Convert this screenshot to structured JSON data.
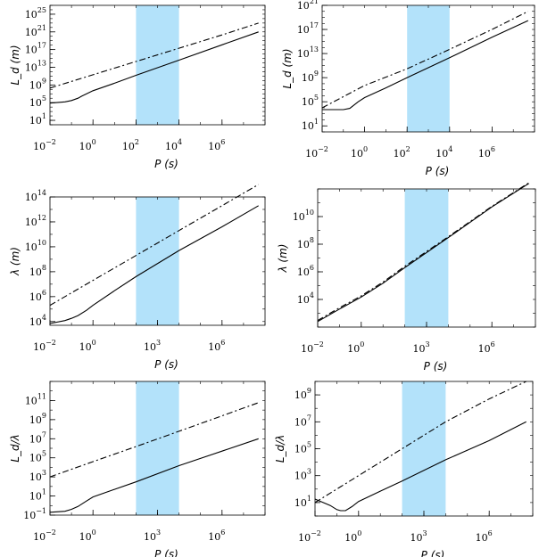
{
  "chart_data": [
    {
      "type": "line",
      "xscale": "log",
      "yscale": "log",
      "xlabel": "P (s)",
      "ylabel": "L_d (m)",
      "xlim": [
        0.01,
        100000000
      ],
      "ylim": [
        1,
        1e+27
      ],
      "xticks": [
        {
          "base": "10",
          "exp": "−2"
        },
        {
          "base": "10",
          "exp": "0"
        },
        {
          "base": "10",
          "exp": "2"
        },
        {
          "base": "10",
          "exp": "4"
        },
        {
          "base": "10",
          "exp": "6"
        }
      ],
      "xtick_values": [
        0.01,
        1,
        100,
        10000,
        1000000
      ],
      "yticks": [
        {
          "base": "10",
          "exp": "1"
        },
        {
          "base": "10",
          "exp": "5"
        },
        {
          "base": "10",
          "exp": "9"
        },
        {
          "base": "10",
          "exp": "13"
        },
        {
          "base": "10",
          "exp": "17"
        },
        {
          "base": "10",
          "exp": "21"
        },
        {
          "base": "10",
          "exp": "25"
        }
      ],
      "ytick_values": [
        10,
        100000.0,
        1000000000.0,
        10000000000000.0,
        1e+17,
        1e+21,
        1e+25
      ],
      "shade": [
        100,
        10000
      ],
      "shade_color": "#b3e2fa",
      "series": [
        {
          "style": "solid",
          "x": [
            0.01,
            0.05,
            0.1,
            0.2,
            0.3,
            1,
            10,
            100,
            10000,
            1000000,
            50000000
          ],
          "y": [
            80000.0,
            150000.0,
            300000.0,
            1000000.0,
            3000000.0,
            50000000.0,
            2500000000.0,
            150000000000.0,
            400000000000000.0,
            1.2e+18,
            1e+21
          ]
        },
        {
          "style": "dashed",
          "x": [
            0.01,
            1,
            100,
            10000,
            1000000,
            50000000
          ],
          "y": [
            200000000.0,
            200000000000.0,
            200000000000000.0,
            2e+17,
            2e+20,
            1e+23
          ]
        }
      ]
    },
    {
      "type": "line",
      "xscale": "log",
      "yscale": "log",
      "xlabel": "P (s)",
      "ylabel": "L_d (m)",
      "xlim": [
        0.01,
        100000000
      ],
      "ylim": [
        1,
        1e+21
      ],
      "xticks": [
        {
          "base": "10",
          "exp": "−2"
        },
        {
          "base": "10",
          "exp": "0"
        },
        {
          "base": "10",
          "exp": "2"
        },
        {
          "base": "10",
          "exp": "4"
        },
        {
          "base": "10",
          "exp": "6"
        }
      ],
      "xtick_values": [
        0.01,
        1,
        100,
        10000,
        1000000
      ],
      "yticks": [
        {
          "base": "10",
          "exp": "1"
        },
        {
          "base": "10",
          "exp": "5"
        },
        {
          "base": "10",
          "exp": "9"
        },
        {
          "base": "10",
          "exp": "13"
        },
        {
          "base": "10",
          "exp": "17"
        },
        {
          "base": "10",
          "exp": "21"
        }
      ],
      "ytick_values": [
        10,
        100000.0,
        1000000000.0,
        10000000000000.0,
        1e+17,
        1e+21
      ],
      "shade": [
        100,
        10000
      ],
      "shade_color": "#b3e2fa",
      "series": [
        {
          "style": "solid",
          "x": [
            0.01,
            0.1,
            0.2,
            0.5,
            1,
            10,
            100,
            10000,
            1000000,
            50000000
          ],
          "y": [
            5000.0,
            5000.0,
            8000.0,
            100000.0,
            500000.0,
            20000000.0,
            1000000000.0,
            2000000000000.0,
            5000000000000000.0,
            3e+18
          ]
        },
        {
          "style": "dashed",
          "x": [
            0.01,
            1,
            100,
            10000,
            1000000,
            50000000
          ],
          "y": [
            10000.0,
            50000000.0,
            30000000000.0,
            50000000000000.0,
            1e+17,
            1e+20
          ]
        }
      ]
    },
    {
      "type": "line",
      "xscale": "log",
      "yscale": "log",
      "xlabel": "P (s)",
      "ylabel": "λ (m)",
      "xlim": [
        0.01,
        100000000
      ],
      "ylim": [
        5000,
        100000000000000.0
      ],
      "xticks": [
        {
          "base": "10",
          "exp": "−2"
        },
        {
          "base": "10",
          "exp": "0"
        },
        {
          "base": "10",
          "exp": "3"
        },
        {
          "base": "10",
          "exp": "6"
        }
      ],
      "xtick_values": [
        0.01,
        1,
        1000,
        1000000
      ],
      "yticks": [
        {
          "base": "10",
          "exp": "4"
        },
        {
          "base": "10",
          "exp": "6"
        },
        {
          "base": "10",
          "exp": "8"
        },
        {
          "base": "10",
          "exp": "10"
        },
        {
          "base": "10",
          "exp": "12"
        },
        {
          "base": "10",
          "exp": "14"
        }
      ],
      "ytick_values": [
        10000,
        1000000.0,
        100000000.0,
        10000000000.0,
        1000000000000.0,
        100000000000000.0
      ],
      "shade": [
        100,
        10000
      ],
      "shade_color": "#b3e2fa",
      "series": [
        {
          "style": "solid",
          "x": [
            0.01,
            0.05,
            0.1,
            0.2,
            0.5,
            1,
            10,
            100,
            10000,
            1000000,
            50000000
          ],
          "y": [
            7000,
            12000.0,
            18000.0,
            30000.0,
            80000.0,
            200000.0,
            3000000.0,
            40000000.0,
            5000000000.0,
            400000000000.0,
            20000000000000.0
          ]
        },
        {
          "style": "dashed",
          "x": [
            0.01,
            1,
            100,
            10000,
            1000000,
            50000000
          ],
          "y": [
            200000.0,
            20000000.0,
            2000000000.0,
            200000000000.0,
            20000000000000.0,
            1000000000000000.0
          ]
        }
      ]
    },
    {
      "type": "line",
      "xscale": "log",
      "yscale": "log",
      "xlabel": "P (s)",
      "ylabel": "λ (m)",
      "xlim": [
        0.01,
        100000000
      ],
      "ylim": [
        100,
        1000000000000.0
      ],
      "xticks": [
        {
          "base": "10",
          "exp": "−2"
        },
        {
          "base": "10",
          "exp": "0"
        },
        {
          "base": "10",
          "exp": "3"
        },
        {
          "base": "10",
          "exp": "6"
        }
      ],
      "xtick_values": [
        0.01,
        1,
        1000,
        1000000
      ],
      "yticks": [
        {
          "base": "10",
          "exp": "4"
        },
        {
          "base": "10",
          "exp": "6"
        },
        {
          "base": "10",
          "exp": "8"
        },
        {
          "base": "10",
          "exp": "10"
        }
      ],
      "ytick_values": [
        10000,
        1000000.0,
        100000000.0,
        10000000000.0
      ],
      "shade": [
        100,
        10000
      ],
      "shade_color": "#b3e2fa",
      "series": [
        {
          "style": "solid",
          "x": [
            0.01,
            0.1,
            1,
            10,
            100,
            10000,
            1000000,
            50000000
          ],
          "y": [
            250,
            2000,
            15000.0,
            150000.0,
            2000000.0,
            300000000.0,
            50000000000.0,
            2500000000000.0
          ]
        },
        {
          "style": "dashed",
          "x": [
            0.01,
            0.1,
            1,
            10,
            100,
            10000,
            1000000,
            50000000
          ],
          "y": [
            300,
            2500,
            18000.0,
            180000.0,
            2500000.0,
            350000000.0,
            55000000000.0,
            2800000000000.0
          ]
        }
      ]
    },
    {
      "type": "line",
      "xscale": "log",
      "yscale": "log",
      "xlabel": "P (s)",
      "ylabel": "L_d/λ",
      "xlim": [
        0.01,
        100000000
      ],
      "ylim": [
        0.1,
        10000000000000.0
      ],
      "xticks": [
        {
          "base": "10",
          "exp": "−2"
        },
        {
          "base": "10",
          "exp": "0"
        },
        {
          "base": "10",
          "exp": "3"
        },
        {
          "base": "10",
          "exp": "6"
        }
      ],
      "xtick_values": [
        0.01,
        1,
        1000,
        1000000
      ],
      "yticks": [
        {
          "base": "10",
          "exp": "−1"
        },
        {
          "base": "10",
          "exp": "1"
        },
        {
          "base": "10",
          "exp": "3"
        },
        {
          "base": "10",
          "exp": "5"
        },
        {
          "base": "10",
          "exp": "7"
        },
        {
          "base": "10",
          "exp": "9"
        },
        {
          "base": "10",
          "exp": "11"
        }
      ],
      "ytick_values": [
        0.1,
        10,
        1000,
        100000,
        10000000.0,
        1000000000.0,
        100000000000.0
      ],
      "shade": [
        100,
        10000
      ],
      "shade_color": "#b3e2fa",
      "series": [
        {
          "style": "solid",
          "x": [
            0.01,
            0.05,
            0.1,
            0.2,
            0.5,
            1,
            10,
            100,
            10000,
            1000000,
            50000000
          ],
          "y": [
            0.2,
            0.25,
            0.4,
            0.8,
            3,
            8,
            50,
            300,
            15000.0,
            500000.0,
            10000000.0
          ]
        },
        {
          "style": "dashed",
          "x": [
            0.01,
            1,
            100,
            10000,
            1000000,
            50000000
          ],
          "y": [
            1000,
            40000.0,
            1500000.0,
            60000000.0,
            2500000000.0,
            60000000000.0
          ]
        }
      ]
    },
    {
      "type": "line",
      "xscale": "log",
      "yscale": "log",
      "xlabel": "P (s)",
      "ylabel": "L_d/λ",
      "xlim": [
        0.01,
        100000000
      ],
      "ylim": [
        1,
        10000000000.0
      ],
      "xticks": [
        {
          "base": "10",
          "exp": "−2"
        },
        {
          "base": "10",
          "exp": "0"
        },
        {
          "base": "10",
          "exp": "3"
        },
        {
          "base": "10",
          "exp": "6"
        }
      ],
      "xtick_values": [
        0.01,
        1,
        1000,
        1000000
      ],
      "yticks": [
        {
          "base": "10",
          "exp": "1"
        },
        {
          "base": "10",
          "exp": "3"
        },
        {
          "base": "10",
          "exp": "5"
        },
        {
          "base": "10",
          "exp": "7"
        },
        {
          "base": "10",
          "exp": "9"
        }
      ],
      "ytick_values": [
        10,
        1000,
        100000,
        10000000.0,
        1000000000.0
      ],
      "shade": [
        100,
        10000
      ],
      "shade_color": "#b3e2fa",
      "series": [
        {
          "style": "solid",
          "x": [
            0.01,
            0.05,
            0.1,
            0.15,
            0.25,
            0.5,
            1,
            10,
            100,
            10000,
            1000000,
            50000000
          ],
          "y": [
            18,
            6,
            3,
            2.5,
            2.5,
            5,
            12,
            70,
            400,
            15000.0,
            400000.0,
            10000000.0
          ]
        },
        {
          "style": "dashed",
          "x": [
            0.01,
            1,
            100,
            10000,
            1000000,
            50000000
          ],
          "y": [
            10,
            1000,
            100000.0,
            10000000.0,
            500000000.0,
            10000000000.0
          ]
        }
      ]
    }
  ]
}
